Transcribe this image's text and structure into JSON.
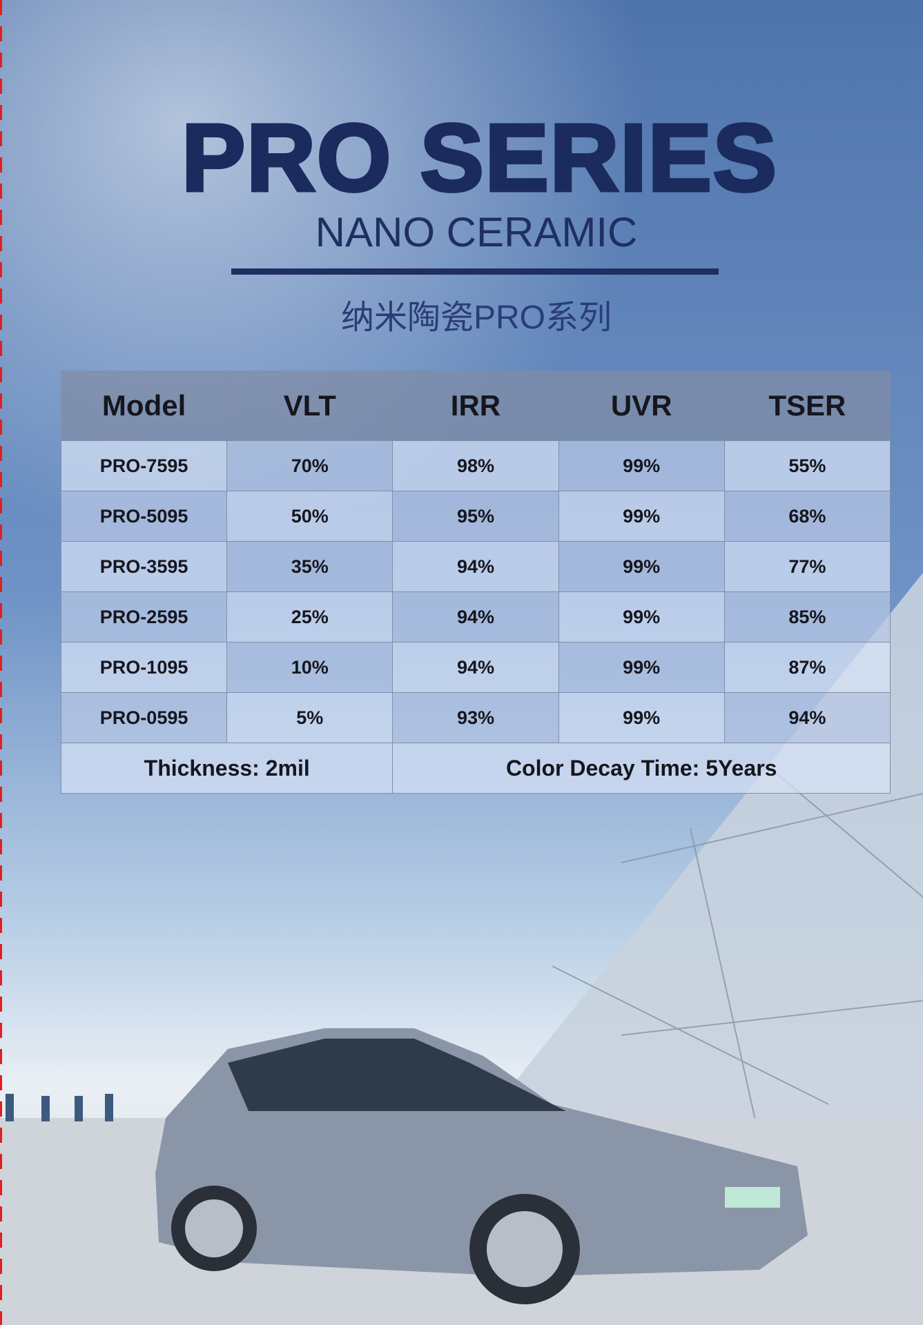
{
  "header": {
    "title": "PRO SERIES",
    "subtitle": "NANO CERAMIC",
    "subtitle_cn": "纳米陶瓷PRO系列"
  },
  "table": {
    "columns": [
      "Model",
      "VLT",
      "IRR",
      "UVR",
      "TSER"
    ],
    "rows": [
      [
        "PRO-7595",
        "70%",
        "98%",
        "99%",
        "55%"
      ],
      [
        "PRO-5095",
        "50%",
        "95%",
        "99%",
        "68%"
      ],
      [
        "PRO-3595",
        "35%",
        "94%",
        "99%",
        "77%"
      ],
      [
        "PRO-2595",
        "25%",
        "94%",
        "99%",
        "85%"
      ],
      [
        "PRO-1095",
        "10%",
        "94%",
        "99%",
        "87%"
      ],
      [
        "PRO-0595",
        "5%",
        "93%",
        "99%",
        "94%"
      ]
    ],
    "footer": [
      "Thickness: 2mil",
      "Color Decay Time: 5Years"
    ]
  }
}
